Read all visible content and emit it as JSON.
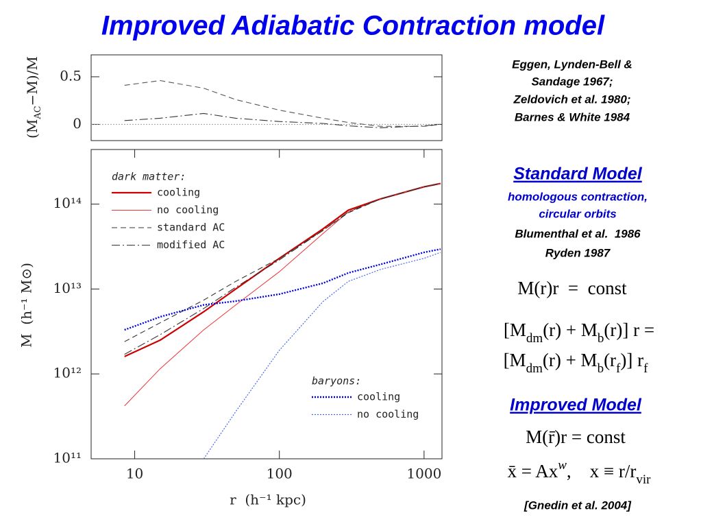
{
  "title": "Improved Adiabatic Contraction model",
  "chart_data": [
    {
      "type": "line",
      "ylabel": [
        "(M",
        "AC",
        "−M)/M"
      ],
      "xscale": "log",
      "xlim": [
        5,
        1330
      ],
      "ylim": [
        -0.17,
        0.73
      ],
      "yticks": [
        0,
        0.5
      ],
      "reference_line": 0,
      "reference_color": "#999999",
      "x": [
        8.5,
        15,
        30,
        50,
        100,
        200,
        300,
        500,
        1000,
        1300
      ],
      "series": [
        {
          "color": "#555555",
          "style": "dashed",
          "width": 1.1,
          "values": [
            0.41,
            0.46,
            0.38,
            0.26,
            0.15,
            0.065,
            0.02,
            -0.02,
            -0.02,
            0
          ]
        },
        {
          "color": "#333333",
          "style": "dashdot",
          "width": 1.1,
          "values": [
            0.04,
            0.065,
            0.115,
            0.065,
            0.03,
            0.01,
            -0.015,
            -0.035,
            -0.015,
            0
          ]
        }
      ]
    },
    {
      "type": "line",
      "xlabel": "r  (h⁻¹ kpc)",
      "ylabel": "M  (h⁻¹ M⊙)",
      "xscale": "log",
      "xlim": [
        5,
        1330
      ],
      "xticks": [
        10,
        100,
        1000
      ],
      "yscale": "log",
      "ylim": [
        100000000000.0,
        440000000000000.0
      ],
      "yticks": [
        {
          "value": 100000000000.0,
          "label": "10¹¹"
        },
        {
          "value": 1000000000000.0,
          "label": "10¹²"
        },
        {
          "value": 10000000000000.0,
          "label": "10¹³"
        },
        {
          "value": 100000000000000.0,
          "label": "10¹⁴"
        }
      ],
      "x": [
        8.5,
        15,
        30,
        50,
        100,
        200,
        300,
        500,
        1000,
        1300
      ],
      "legend_groups": [
        {
          "title": "dark matter:",
          "series": [
            {
              "name": "cooling",
              "color": "#cc0000",
              "style": "solid",
              "width": 2.2,
              "values": [
                1600000000000.0,
                2500000000000.0,
                5400000000000.0,
                10000000000000.0,
                23000000000000.0,
                51000000000000.0,
                85000000000000.0,
                115000000000000.0,
                160000000000000.0,
                175000000000000.0
              ]
            },
            {
              "name": "no cooling",
              "color": "#ee3333",
              "style": "solid",
              "width": 1,
              "values": [
                420000000000.0,
                1150000000000.0,
                3300000000000.0,
                6500000000000.0,
                16000000000000.0,
                45000000000000.0,
                81000000000000.0,
                115000000000000.0,
                160000000000000.0,
                175000000000000.0
              ]
            },
            {
              "name": "standard AC",
              "color": "#333333",
              "style": "dashed",
              "width": 1.1,
              "values": [
                2400000000000.0,
                4000000000000.0,
                7400000000000.0,
                12300000000000.0,
                23000000000000.0,
                49000000000000.0,
                79000000000000.0,
                115000000000000.0,
                160000000000000.0,
                175000000000000.0
              ]
            },
            {
              "name": "modified AC",
              "color": "#333333",
              "style": "dashdot",
              "width": 1.1,
              "values": [
                1700000000000.0,
                2900000000000.0,
                5900000000000.0,
                10500000000000.0,
                22000000000000.0,
                49000000000000.0,
                81000000000000.0,
                115000000000000.0,
                160000000000000.0,
                175000000000000.0
              ]
            }
          ]
        },
        {
          "title": "baryons:",
          "series": [
            {
              "name": "cooling",
              "color": "#0000dd",
              "style": "dotted",
              "width": 2.4,
              "values": [
                3300000000000.0,
                4700000000000.0,
                6500000000000.0,
                7200000000000.0,
                8700000000000.0,
                11700000000000.0,
                15500000000000.0,
                19500000000000.0,
                27000000000000.0,
                29500000000000.0
              ]
            },
            {
              "name": "no cooling",
              "color": "#4466ee",
              "style": "dotted",
              "width": 1.2,
              "values": [
                null,
                null,
                100000000000.0,
                360000000000.0,
                1900000000000.0,
                7100000000000.0,
                12300000000000.0,
                17000000000000.0,
                23000000000000.0,
                27000000000000.0
              ]
            }
          ]
        }
      ]
    }
  ],
  "references": [
    "Eggen, Lynden-Bell &",
    "Sandage 1967;",
    "Zeldovich et al. 1980;",
    "Barnes & White 1984"
  ],
  "standard_model": {
    "heading": "Standard Model",
    "description": [
      "homologous contraction,",
      "circular orbits"
    ],
    "citations": [
      "Blumenthal et al.  1986",
      "Ryden 1987"
    ],
    "formulas": [
      [
        "M(r)r  =  const"
      ],
      [
        "[M",
        {
          "sub": "dm"
        },
        "(r) + M",
        {
          "sub": "b"
        },
        "(r)] r ="
      ],
      [
        "[M",
        {
          "sub": "dm"
        },
        "(r) + M",
        {
          "sub": "b"
        },
        "(r",
        {
          "sub": "f"
        },
        ")] r",
        {
          "sub": "f"
        }
      ]
    ]
  },
  "improved_model": {
    "heading": "Improved Model",
    "formulas": [
      [
        "M(r̄)r = const"
      ],
      [
        "x̄ = Ax",
        {
          "sup": "w"
        },
        ",    x ≡ r/r",
        {
          "sub": "vir"
        }
      ]
    ],
    "citation": "[Gnedin et al. 2004]"
  }
}
